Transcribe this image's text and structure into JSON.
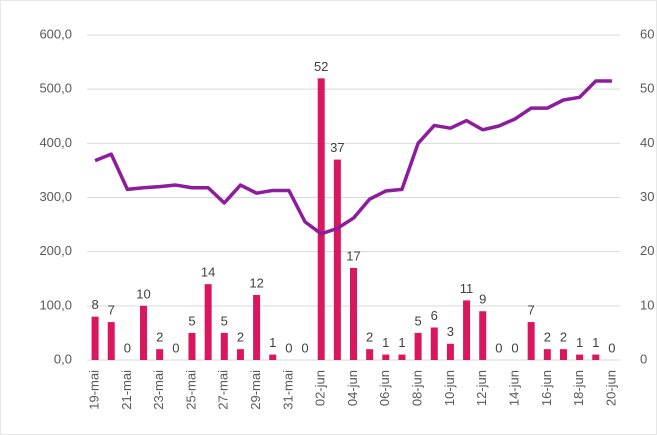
{
  "chart_data": {
    "type": "combo",
    "categories": [
      "19-mai",
      null,
      "21-mai",
      null,
      "23-mai",
      null,
      "25-mai",
      null,
      "27-mai",
      null,
      "29-mai",
      null,
      "31-mai",
      null,
      "02-jun",
      null,
      "04-jun",
      null,
      "06-jun",
      null,
      "08-jun",
      null,
      "10-jun",
      null,
      "12-jun",
      null,
      "14-jun",
      null,
      "16-jun",
      null,
      "18-jun",
      null,
      "20-jun"
    ],
    "series": [
      {
        "type": "bar",
        "axis": "y2",
        "color": "#d9165e",
        "values": [
          8,
          7,
          0,
          10,
          2,
          0,
          5,
          14,
          5,
          2,
          12,
          1,
          0,
          0,
          52,
          37,
          17,
          2,
          1,
          1,
          5,
          6,
          3,
          11,
          9,
          0,
          0,
          7,
          2,
          2,
          1,
          1,
          0
        ]
      },
      {
        "type": "line",
        "color": "#8e1d9e",
        "values": [
          368,
          380,
          315,
          318,
          320,
          323,
          318,
          318,
          290,
          323,
          308,
          313,
          313,
          255,
          233,
          243,
          262,
          297,
          312,
          315,
          400,
          433,
          428,
          442,
          425,
          432,
          445,
          465,
          465,
          480,
          485,
          515,
          515
        ]
      }
    ],
    "ylim": [
      0,
      600
    ],
    "yticks": [
      {
        "value": 0,
        "label": "0,0"
      },
      {
        "value": 100,
        "label": "100,0"
      },
      {
        "value": 200,
        "label": "200,0"
      },
      {
        "value": 300,
        "label": "300,0"
      },
      {
        "value": 400,
        "label": "400,0"
      },
      {
        "value": 500,
        "label": "500,0"
      },
      {
        "value": 600,
        "label": "600,0"
      }
    ],
    "y2lim": [
      0,
      60
    ],
    "y2ticks": [
      0,
      10,
      20,
      30,
      40,
      50,
      60
    ],
    "grid": true
  }
}
